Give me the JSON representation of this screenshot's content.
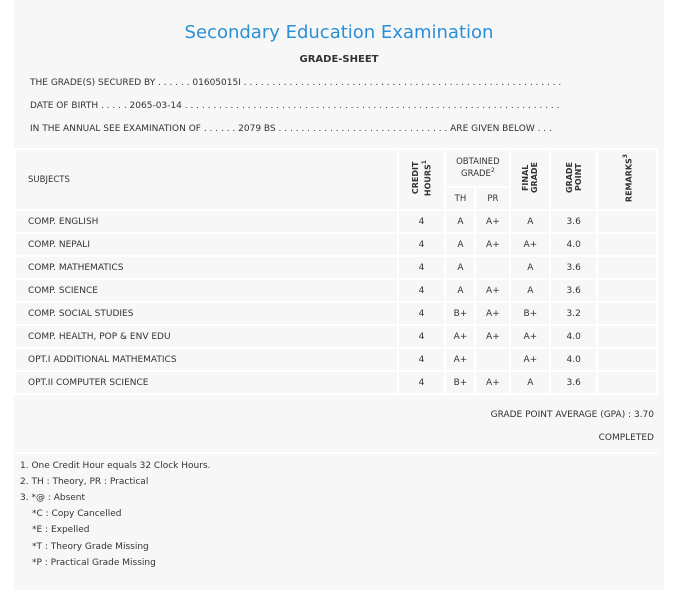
{
  "title": "Secondary Education Examination",
  "subtitle": "GRADE-SHEET",
  "info": {
    "secured_by": "THE GRADE(S) SECURED BY . . . . . . 01605015I . . . . . . . . . . . . . . . . . . . . . . . . . . . . . . . . . . . . . . . . . . . . . . . . . . . . . . . .",
    "dob": "DATE OF BIRTH . . . . . 2065-03-14 . . . . . . . . . . . . . . . . . . . . . . . . . . . . . . . . . . . . . . . . . . . . . . . . . . . . . . . . . . . . . . . . . .",
    "exam": "IN THE ANNUAL SEE EXAMINATION OF . . . . . . 2079 BS . . . . . . . . . . . . . . . . . . . . . . . . . . . . . . ARE GIVEN BELOW . . ."
  },
  "headers": {
    "subjects": "SUBJECTS",
    "credit1": "CREDIT",
    "credit2": "HOURS",
    "credit_sup": "1",
    "obtained": "OBTAINED GRADE",
    "obtained_sup": "2",
    "th": "TH",
    "pr": "PR",
    "final1": "FINAL",
    "final2": "GRADE",
    "gp1": "GRADE",
    "gp2": "POINT",
    "remarks": "REMARKS",
    "remarks_sup": "3"
  },
  "rows": [
    {
      "subject": "COMP. ENGLISH",
      "credit": "4",
      "th": "A",
      "pr": "A+",
      "final": "A",
      "gp": "3.6",
      "remarks": ""
    },
    {
      "subject": "COMP. NEPALI",
      "credit": "4",
      "th": "A",
      "pr": "A+",
      "final": "A+",
      "gp": "4.0",
      "remarks": ""
    },
    {
      "subject": "COMP. MATHEMATICS",
      "credit": "4",
      "th": "A",
      "pr": "",
      "final": "A",
      "gp": "3.6",
      "remarks": ""
    },
    {
      "subject": "COMP. SCIENCE",
      "credit": "4",
      "th": "A",
      "pr": "A+",
      "final": "A",
      "gp": "3.6",
      "remarks": ""
    },
    {
      "subject": "COMP. SOCIAL STUDIES",
      "credit": "4",
      "th": "B+",
      "pr": "A+",
      "final": "B+",
      "gp": "3.2",
      "remarks": ""
    },
    {
      "subject": "COMP. HEALTH, POP & ENV EDU",
      "credit": "4",
      "th": "A+",
      "pr": "A+",
      "final": "A+",
      "gp": "4.0",
      "remarks": ""
    },
    {
      "subject": "OPT.I ADDITIONAL MATHEMATICS",
      "credit": "4",
      "th": "A+",
      "pr": "",
      "final": "A+",
      "gp": "4.0",
      "remarks": ""
    },
    {
      "subject": "OPT.II COMPUTER SCIENCE",
      "credit": "4",
      "th": "B+",
      "pr": "A+",
      "final": "A",
      "gp": "3.6",
      "remarks": ""
    }
  ],
  "gpa": "GRADE POINT AVERAGE (GPA) : 3.70",
  "status": "COMPLETED",
  "notes": [
    "1. One Credit Hour equals 32 Clock Hours.",
    "2. TH : Theory, PR : Practical",
    "3. *@ : Absent",
    "*C : Copy Cancelled",
    "*E : Expelled",
    "*T : Theory Grade Missing",
    "*P : Practical Grade Missing"
  ]
}
